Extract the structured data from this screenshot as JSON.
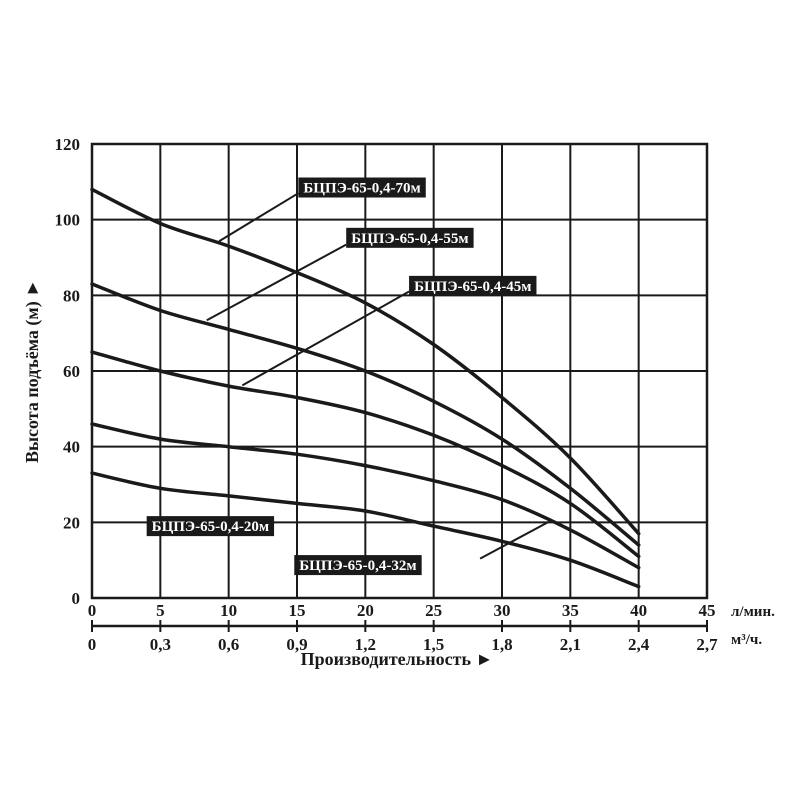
{
  "chart_data": {
    "type": "line",
    "xlabel": "Производительность ►",
    "ylabel": "Высота подъёма (м) ►",
    "x_unit": "л/мин.",
    "x2_unit": "м³/ч.",
    "xlim": [
      0,
      45
    ],
    "ylim": [
      0,
      120
    ],
    "x_ticks": [
      "0",
      "5",
      "10",
      "15",
      "20",
      "25",
      "30",
      "35",
      "40",
      "45"
    ],
    "x2_ticks": [
      "0",
      "0,3",
      "0,6",
      "0,9",
      "1,2",
      "1,5",
      "1,8",
      "2,1",
      "2,4",
      "2,7"
    ],
    "y_ticks": [
      "0",
      "20",
      "40",
      "60",
      "80",
      "100",
      "120"
    ],
    "grid": true,
    "series": [
      {
        "name": "БЦПЭ-65-0,4-70м",
        "x": [
          0,
          5,
          10,
          15,
          20,
          25,
          30,
          35,
          40
        ],
        "y": [
          108,
          99,
          93,
          86,
          78,
          67,
          53,
          37,
          17
        ]
      },
      {
        "name": "БЦПЭ-65-0,4-55м",
        "x": [
          0,
          5,
          10,
          15,
          20,
          25,
          30,
          35,
          40
        ],
        "y": [
          83,
          76,
          71,
          66,
          60,
          52,
          42,
          29,
          14
        ]
      },
      {
        "name": "БЦПЭ-65-0,4-45м",
        "x": [
          0,
          5,
          10,
          15,
          20,
          25,
          30,
          35,
          40
        ],
        "y": [
          65,
          60,
          56,
          53,
          49,
          43,
          35,
          25,
          11
        ]
      },
      {
        "name": "БЦПЭ-65-0,4-32м",
        "x": [
          0,
          5,
          10,
          15,
          20,
          25,
          30,
          35,
          40
        ],
        "y": [
          46,
          42,
          40,
          38,
          35,
          31,
          26,
          18,
          8
        ]
      },
      {
        "name": "БЦПЭ-65-0,4-20м",
        "x": [
          0,
          5,
          10,
          15,
          20,
          25,
          30,
          35,
          40
        ],
        "y": [
          33,
          29,
          27,
          25,
          23,
          19,
          15,
          10,
          3
        ]
      }
    ],
    "annotations": [
      {
        "series": 0,
        "text": "БЦПЭ-65-0,4-70м",
        "label_at": [
          15.1,
          108.5
        ],
        "pointer_from": [
          15.1,
          107
        ],
        "pointer_to": [
          9.3,
          94.3
        ]
      },
      {
        "series": 1,
        "text": "БЦПЭ-65-0,4-55м",
        "label_at": [
          18.6,
          95.2
        ],
        "pointer_from": [
          18.6,
          93.4
        ],
        "pointer_to": [
          8.4,
          73.4
        ]
      },
      {
        "series": 2,
        "text": "БЦПЭ-65-0,4-45м",
        "label_at": [
          23.2,
          82.5
        ],
        "pointer_from": [
          23.2,
          81
        ],
        "pointer_to": [
          11.0,
          56.2
        ]
      },
      {
        "series": 4,
        "text": "БЦПЭ-65-0,4-20м",
        "label_at": [
          4.0,
          19.0
        ],
        "pointer_from": [
          19.5,
          19.0
        ],
        "pointer_to": [
          19.5,
          19.0
        ]
      },
      {
        "series": 3,
        "text": "БЦПЭ-65-0,4-32м",
        "label_at": [
          14.8,
          8.7
        ],
        "pointer_from": [
          28.4,
          10.4
        ],
        "pointer_to": [
          33.5,
          20.3
        ]
      }
    ]
  }
}
